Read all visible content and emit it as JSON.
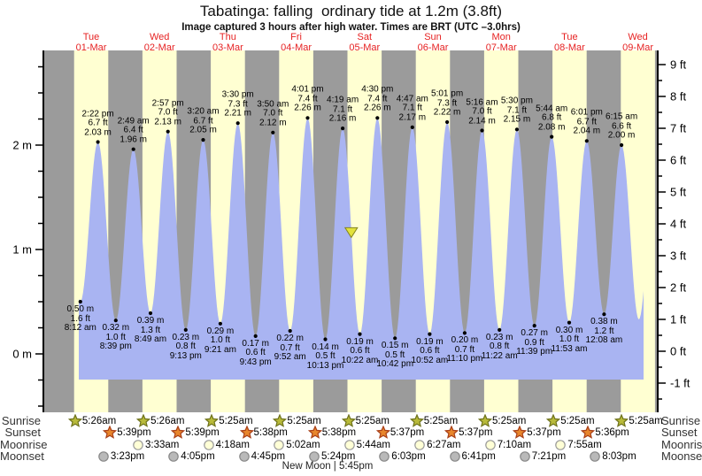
{
  "title": "Tabatinga: falling  ordinary tide at 1.2m (3.8ft)",
  "subtitle": "Image captured 3 hours after high water. Times are BRT (UTC –3.0hrs)",
  "colors": {
    "night_band": "#9b9b9b",
    "day_band": "#ffffd2",
    "tide_fill": "#a9b4f2",
    "day_label_red": "#e62222",
    "axis": "#000000",
    "sunrise_star": "#b8ba3a",
    "sunrise_star_edge": "#6f731d",
    "sunset_star": "#e8862c",
    "sunset_star_edge": "#a93f17",
    "moonrise_circle": "#ffffd6",
    "moonrise_circle_edge": "#9a9a9a",
    "moonset_circle": "#b9b9b9",
    "moonset_circle_edge": "#878787",
    "marker_triangle": "#e2e23c",
    "marker_triangle_edge": "#84841e"
  },
  "days": [
    {
      "name": "Tue",
      "date": "01-Mar"
    },
    {
      "name": "Wed",
      "date": "02-Mar"
    },
    {
      "name": "Thu",
      "date": "03-Mar"
    },
    {
      "name": "Fri",
      "date": "04-Mar"
    },
    {
      "name": "Sat",
      "date": "05-Mar"
    },
    {
      "name": "Sun",
      "date": "06-Mar"
    },
    {
      "name": "Mon",
      "date": "07-Mar"
    },
    {
      "name": "Tue",
      "date": "08-Mar"
    },
    {
      "name": "Wed",
      "date": "09-Mar"
    }
  ],
  "chart_data": {
    "type": "area",
    "title": "Tabatinga: falling  ordinary tide at 1.2m (3.8ft)",
    "x_axis": {
      "start": "Tue 01-Mar",
      "end": "Wed 09-Mar",
      "day_shading": "yellow = daytime (6am-6pm), gray = night"
    },
    "y_axis_left": {
      "unit": "m",
      "tick_labels": [
        "0 m",
        "1 m",
        "2 m"
      ],
      "minor_step_m": 0.25
    },
    "y_axis_right": {
      "unit": "ft",
      "tick_labels": [
        "-1 ft",
        "0 ft",
        "1 ft",
        "2 ft",
        "3 ft",
        "4 ft",
        "5 ft",
        "6 ft",
        "7 ft",
        "8 ft",
        "9 ft"
      ],
      "minor_step_ft": 0.5
    },
    "current_level_marker": {
      "day": 5,
      "time": "7:20 am",
      "height_m": 1.2,
      "shape": "yellow triangle"
    },
    "tide_events": [
      {
        "kind": "low",
        "day": 1,
        "time": "8:12 am",
        "height_m": "0.50 m",
        "height_ft": "1.6 ft"
      },
      {
        "kind": "high",
        "day": 1,
        "time": "2:22 pm",
        "height_m": "2.03 m",
        "height_ft": "6.7 ft"
      },
      {
        "kind": "low",
        "day": 1,
        "time": "8:39 pm",
        "height_m": "0.32 m",
        "height_ft": "1.0 ft"
      },
      {
        "kind": "high",
        "day": 2,
        "time": "2:49 am",
        "height_m": "1.96 m",
        "height_ft": "6.4 ft"
      },
      {
        "kind": "low",
        "day": 2,
        "time": "8:49 am",
        "height_m": "0.39 m",
        "height_ft": "1.3 ft"
      },
      {
        "kind": "high",
        "day": 2,
        "time": "2:57 pm",
        "height_m": "2.13 m",
        "height_ft": "7.0 ft"
      },
      {
        "kind": "low",
        "day": 2,
        "time": "9:13 pm",
        "height_m": "0.23 m",
        "height_ft": "0.8 ft"
      },
      {
        "kind": "high",
        "day": 3,
        "time": "3:20 am",
        "height_m": "2.05 m",
        "height_ft": "6.7 ft"
      },
      {
        "kind": "low",
        "day": 3,
        "time": "9:21 am",
        "height_m": "0.29 m",
        "height_ft": "1.0 ft"
      },
      {
        "kind": "high",
        "day": 3,
        "time": "3:30 pm",
        "height_m": "2.21 m",
        "height_ft": "7.3 ft"
      },
      {
        "kind": "low",
        "day": 3,
        "time": "9:43 pm",
        "height_m": "0.17 m",
        "height_ft": "0.6 ft"
      },
      {
        "kind": "high",
        "day": 4,
        "time": "3:50 am",
        "height_m": "2.12 m",
        "height_ft": "7.0 ft"
      },
      {
        "kind": "low",
        "day": 4,
        "time": "9:52 am",
        "height_m": "0.22 m",
        "height_ft": "0.7 ft"
      },
      {
        "kind": "high",
        "day": 4,
        "time": "4:01 pm",
        "height_m": "2.26 m",
        "height_ft": "7.4 ft"
      },
      {
        "kind": "low",
        "day": 4,
        "time": "10:13 pm",
        "height_m": "0.14 m",
        "height_ft": "0.5 ft"
      },
      {
        "kind": "high",
        "day": 5,
        "time": "4:19 am",
        "height_m": "2.16 m",
        "height_ft": "7.1 ft"
      },
      {
        "kind": "low",
        "day": 5,
        "time": "10:22 am",
        "height_m": "0.19 m",
        "height_ft": "0.6 ft"
      },
      {
        "kind": "high",
        "day": 5,
        "time": "4:30 pm",
        "height_m": "2.26 m",
        "height_ft": "7.4 ft"
      },
      {
        "kind": "low",
        "day": 5,
        "time": "10:42 pm",
        "height_m": "0.15 m",
        "height_ft": "0.5 ft"
      },
      {
        "kind": "high",
        "day": 6,
        "time": "4:47 am",
        "height_m": "2.17 m",
        "height_ft": "7.1 ft"
      },
      {
        "kind": "low",
        "day": 6,
        "time": "10:52 am",
        "height_m": "0.19 m",
        "height_ft": "0.6 ft"
      },
      {
        "kind": "high",
        "day": 6,
        "time": "5:01 pm",
        "height_m": "2.22 m",
        "height_ft": "7.3 ft"
      },
      {
        "kind": "low",
        "day": 6,
        "time": "11:10 pm",
        "height_m": "0.20 m",
        "height_ft": "0.7 ft"
      },
      {
        "kind": "high",
        "day": 7,
        "time": "5:16 am",
        "height_m": "2.14 m",
        "height_ft": "7.0 ft"
      },
      {
        "kind": "low",
        "day": 7,
        "time": "11:22 am",
        "height_m": "0.23 m",
        "height_ft": "0.8 ft"
      },
      {
        "kind": "high",
        "day": 7,
        "time": "5:30 pm",
        "height_m": "2.15 m",
        "height_ft": "7.1 ft"
      },
      {
        "kind": "low",
        "day": 7,
        "time": "11:39 pm",
        "height_m": "0.27 m",
        "height_ft": "0.9 ft"
      },
      {
        "kind": "high",
        "day": 8,
        "time": "5:44 am",
        "height_m": "2.08 m",
        "height_ft": "6.8 ft"
      },
      {
        "kind": "low",
        "day": 8,
        "time": "11:53 am",
        "height_m": "0.30 m",
        "height_ft": "1.0 ft"
      },
      {
        "kind": "high",
        "day": 8,
        "time": "6:01 pm",
        "height_m": "2.04 m",
        "height_ft": "6.7 ft"
      },
      {
        "kind": "low",
        "day": 9,
        "time": "12:08 am",
        "height_m": "0.38 m",
        "height_ft": "1.2 ft"
      },
      {
        "kind": "high",
        "day": 9,
        "time": "6:15 am",
        "height_m": "2.00 m",
        "height_ft": "6.6 ft"
      }
    ]
  },
  "astro": {
    "rows": [
      {
        "label": "Sunrise",
        "marker": "star-sunrise",
        "events": [
          {
            "day": 1,
            "time": "5:26am"
          },
          {
            "day": 2,
            "time": "5:26am"
          },
          {
            "day": 3,
            "time": "5:25am"
          },
          {
            "day": 4,
            "time": "5:25am"
          },
          {
            "day": 5,
            "time": "5:25am"
          },
          {
            "day": 6,
            "time": "5:25am"
          },
          {
            "day": 7,
            "time": "5:25am"
          },
          {
            "day": 8,
            "time": "5:25am"
          },
          {
            "day": 9,
            "time": "5:25am"
          }
        ]
      },
      {
        "label": "Sunset",
        "marker": "star-sunset",
        "events": [
          {
            "day": 1,
            "time": "5:39pm"
          },
          {
            "day": 2,
            "time": "5:39pm"
          },
          {
            "day": 3,
            "time": "5:38pm"
          },
          {
            "day": 4,
            "time": "5:38pm"
          },
          {
            "day": 5,
            "time": "5:37pm"
          },
          {
            "day": 6,
            "time": "5:37pm"
          },
          {
            "day": 7,
            "time": "5:37pm"
          },
          {
            "day": 8,
            "time": "5:36pm"
          }
        ]
      },
      {
        "label": "Moonrise",
        "marker": "circle-moonrise",
        "events": [
          {
            "day": 2,
            "time": "3:33am"
          },
          {
            "day": 3,
            "time": "4:18am"
          },
          {
            "day": 4,
            "time": "5:02am"
          },
          {
            "day": 5,
            "time": "5:44am"
          },
          {
            "day": 6,
            "time": "6:27am"
          },
          {
            "day": 7,
            "time": "7:10am"
          },
          {
            "day": 8,
            "time": "7:55am"
          }
        ]
      },
      {
        "label": "Moonset",
        "marker": "circle-moonset",
        "events": [
          {
            "day": 1,
            "time": "3:23pm"
          },
          {
            "day": 2,
            "time": "4:05pm"
          },
          {
            "day": 3,
            "time": "4:45pm"
          },
          {
            "day": 4,
            "time": "5:24pm"
          },
          {
            "day": 5,
            "time": "6:03pm"
          },
          {
            "day": 6,
            "time": "6:41pm"
          },
          {
            "day": 7,
            "time": "7:21pm"
          },
          {
            "day": 8,
            "time": "8:03pm"
          }
        ]
      }
    ],
    "footnote": "New Moon | 5:45pm"
  }
}
